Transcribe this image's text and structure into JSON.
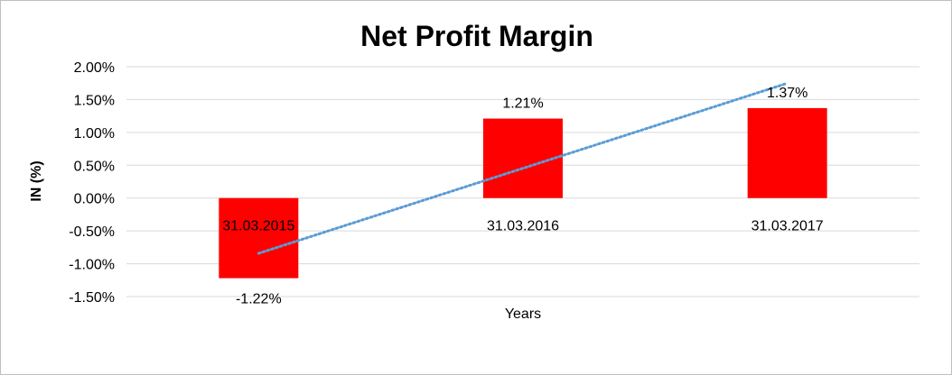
{
  "chart_data": {
    "type": "bar",
    "title": "Net Profit Margin",
    "xlabel": "Years",
    "ylabel": "IN (%)",
    "categories": [
      "31.03.2015",
      "31.03.2016",
      "31.03.2017"
    ],
    "series": [
      {
        "values": [
          -1.22,
          1.21,
          1.37
        ],
        "color": "#ff0000"
      }
    ],
    "data_labels": [
      "-1.22%",
      "1.21%",
      "1.37%"
    ],
    "ylim": [
      -1.5,
      2.0
    ],
    "yticks": [
      2.0,
      1.5,
      1.0,
      0.5,
      0.0,
      -0.5,
      -1.0,
      -1.5
    ],
    "ytick_labels": [
      "2.00%",
      "1.50%",
      "1.00%",
      "0.50%",
      "0.00%",
      "-0.50%",
      "-1.00%",
      "-1.50%"
    ],
    "grid": true,
    "trendline": {
      "type": "linear",
      "style": "dotted",
      "color": "#5b9bd5"
    },
    "gridline_color": "#d9d9d9",
    "text_color": "#000000"
  }
}
